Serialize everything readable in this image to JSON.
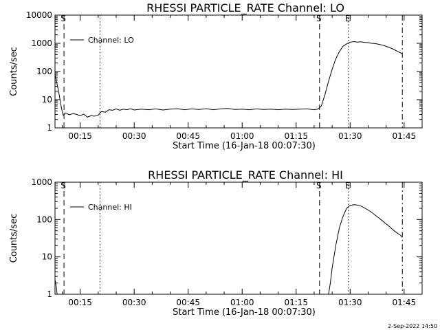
{
  "timestamp": "2-Sep-2022 14:50",
  "chart_data": [
    {
      "type": "line",
      "title": "RHESSI PARTICLE_RATE Channel: LO",
      "xlabel": "Start Time (16-Jan-18 00:07:30)",
      "ylabel": "Counts/sec",
      "y_scale": "log",
      "x_unit": "minutes after 00:00",
      "xlim": [
        8,
        110
      ],
      "ylim": [
        1,
        10000
      ],
      "x_ticks": [
        {
          "x": 15,
          "label": "00:15"
        },
        {
          "x": 30,
          "label": "00:30"
        },
        {
          "x": 45,
          "label": "00:45"
        },
        {
          "x": 60,
          "label": "01:00"
        },
        {
          "x": 75,
          "label": "01:15"
        },
        {
          "x": 90,
          "label": "01:30"
        },
        {
          "x": 105,
          "label": "01:45"
        }
      ],
      "y_ticks": [
        {
          "y": 1,
          "label": "1"
        },
        {
          "y": 10,
          "label": "10"
        },
        {
          "y": 100,
          "label": "100"
        },
        {
          "y": 1000,
          "label": "1000"
        },
        {
          "y": 10000,
          "label": "10000"
        }
      ],
      "legend": {
        "label": "Channel: LO",
        "placement": "top-left"
      },
      "vlines": [
        {
          "x": 10.5,
          "style": "dashed",
          "label": "S"
        },
        {
          "x": 20.5,
          "style": "dotted",
          "label": ""
        },
        {
          "x": 81.5,
          "style": "dashed",
          "label": "S"
        },
        {
          "x": 89.5,
          "style": "dotted",
          "label": "E"
        },
        {
          "x": 104.5,
          "style": "dashdot",
          "label": ""
        }
      ],
      "series": [
        {
          "name": "Channel: LO",
          "points": [
            [
              8,
              80
            ],
            [
              9,
              20
            ],
            [
              9.8,
              5
            ],
            [
              10.3,
              2.8
            ],
            [
              11,
              3.4
            ],
            [
              12,
              2.9
            ],
            [
              13,
              3.2
            ],
            [
              14,
              3.0
            ],
            [
              15,
              2.7
            ],
            [
              16,
              3.1
            ],
            [
              17,
              2.4
            ],
            [
              18,
              2.7
            ],
            [
              19,
              2.6
            ],
            [
              20,
              2.8
            ],
            [
              20.5,
              3.4
            ],
            [
              21,
              3.8
            ],
            [
              22,
              3.6
            ],
            [
              23,
              4.4
            ],
            [
              24,
              4.2
            ],
            [
              25,
              4.7
            ],
            [
              26,
              4.2
            ],
            [
              27,
              4.6
            ],
            [
              28,
              4.4
            ],
            [
              29,
              4.8
            ],
            [
              30,
              4.3
            ],
            [
              32,
              4.6
            ],
            [
              34,
              4.4
            ],
            [
              36,
              4.7
            ],
            [
              38,
              4.3
            ],
            [
              40,
              4.6
            ],
            [
              42,
              4.8
            ],
            [
              44,
              4.4
            ],
            [
              46,
              4.7
            ],
            [
              48,
              4.5
            ],
            [
              50,
              4.8
            ],
            [
              52,
              4.4
            ],
            [
              54,
              4.7
            ],
            [
              56,
              4.9
            ],
            [
              58,
              4.5
            ],
            [
              60,
              4.6
            ],
            [
              62,
              4.4
            ],
            [
              64,
              4.7
            ],
            [
              66,
              4.5
            ],
            [
              68,
              4.6
            ],
            [
              70,
              4.4
            ],
            [
              72,
              4.6
            ],
            [
              74,
              4.5
            ],
            [
              76,
              4.6
            ],
            [
              78,
              4.7
            ],
            [
              80,
              4.4
            ],
            [
              81,
              4.6
            ],
            [
              82,
              6
            ],
            [
              83,
              15
            ],
            [
              84,
              45
            ],
            [
              85,
              120
            ],
            [
              86,
              280
            ],
            [
              87,
              500
            ],
            [
              88,
              780
            ],
            [
              89,
              950
            ],
            [
              90,
              1100
            ],
            [
              91,
              1150
            ],
            [
              92,
              1100
            ],
            [
              93,
              1130
            ],
            [
              94,
              1080
            ],
            [
              95,
              1060
            ],
            [
              96,
              1000
            ],
            [
              97,
              980
            ],
            [
              98,
              920
            ],
            [
              99,
              860
            ],
            [
              100,
              780
            ],
            [
              101,
              700
            ],
            [
              102,
              620
            ],
            [
              103,
              530
            ],
            [
              104,
              460
            ],
            [
              104.5,
              420
            ]
          ]
        }
      ]
    },
    {
      "type": "line",
      "title": "RHESSI PARTICLE_RATE Channel: HI",
      "xlabel": "Start Time (16-Jan-18 00:07:30)",
      "ylabel": "Counts/sec",
      "y_scale": "log",
      "x_unit": "minutes after 00:00",
      "xlim": [
        8,
        110
      ],
      "ylim": [
        1,
        1000
      ],
      "x_ticks": [
        {
          "x": 15,
          "label": "00:15"
        },
        {
          "x": 30,
          "label": "00:30"
        },
        {
          "x": 45,
          "label": "00:45"
        },
        {
          "x": 60,
          "label": "01:00"
        },
        {
          "x": 75,
          "label": "01:15"
        },
        {
          "x": 90,
          "label": "01:30"
        },
        {
          "x": 105,
          "label": "01:45"
        }
      ],
      "y_ticks": [
        {
          "y": 1,
          "label": "1"
        },
        {
          "y": 10,
          "label": "10"
        },
        {
          "y": 100,
          "label": "100"
        },
        {
          "y": 1000,
          "label": "1000"
        }
      ],
      "legend": {
        "label": "Channel: HI",
        "placement": "top-left"
      },
      "vlines": [
        {
          "x": 10.5,
          "style": "dashed",
          "label": "S"
        },
        {
          "x": 20.5,
          "style": "dotted",
          "label": ""
        },
        {
          "x": 81.5,
          "style": "dashed",
          "label": "S"
        },
        {
          "x": 89.5,
          "style": "dotted",
          "label": "E"
        },
        {
          "x": 104.5,
          "style": "dashdot",
          "label": ""
        }
      ],
      "series": [
        {
          "name": "Channel: HI",
          "points": [
            [
              8,
              2.5
            ],
            [
              8.4,
              1.5
            ],
            [
              8.6,
              1.0
            ]
          ]
        },
        {
          "name": "Channel: HI",
          "points": [
            [
              84,
              1.0
            ],
            [
              84.5,
              2
            ],
            [
              85,
              5
            ],
            [
              86,
              20
            ],
            [
              87,
              60
            ],
            [
              88,
              120
            ],
            [
              89,
              200
            ],
            [
              90,
              240
            ],
            [
              91,
              250
            ],
            [
              92,
              245
            ],
            [
              93,
              230
            ],
            [
              94,
              205
            ],
            [
              95,
              180
            ],
            [
              96,
              155
            ],
            [
              97,
              130
            ],
            [
              98,
              110
            ],
            [
              99,
              92
            ],
            [
              100,
              76
            ],
            [
              101,
              64
            ],
            [
              102,
              52
            ],
            [
              103,
              44
            ],
            [
              104,
              38
            ],
            [
              104.5,
              33
            ]
          ]
        }
      ]
    }
  ]
}
